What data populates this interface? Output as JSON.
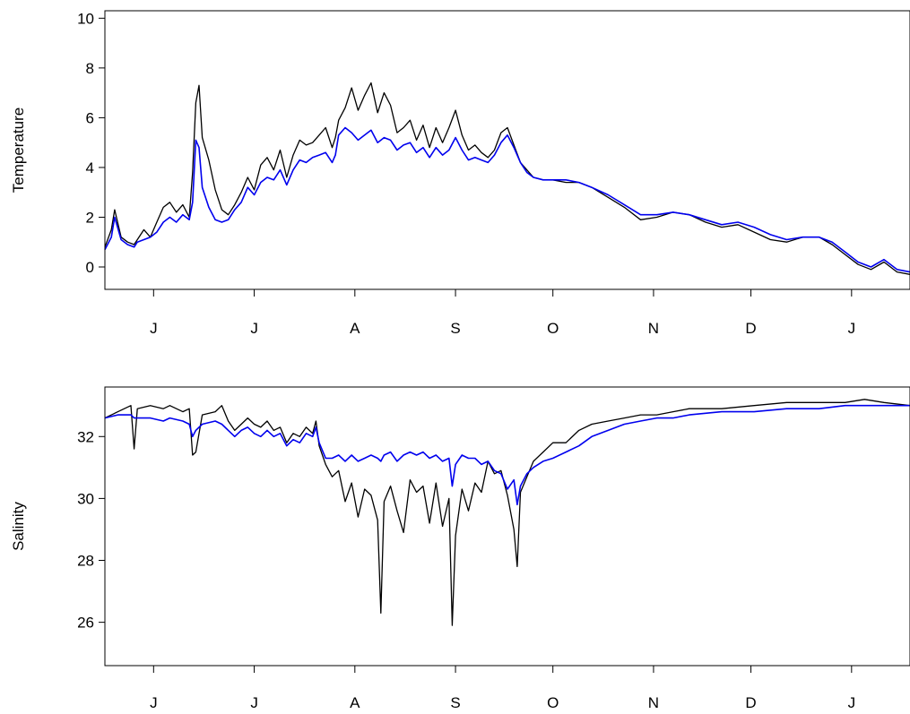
{
  "chart_data": [
    {
      "type": "line",
      "ylabel": "Temperature",
      "xlabel": "",
      "title": "",
      "x_tick_labels": [
        "J",
        "J",
        "A",
        "S",
        "O",
        "N",
        "D",
        "J"
      ],
      "x_tick_days": [
        15,
        46,
        77,
        108,
        138,
        169,
        199,
        230
      ],
      "xlim": [
        0,
        248
      ],
      "ylim": [
        -0.9,
        10.3
      ],
      "y_ticks": [
        0,
        2,
        4,
        6,
        8,
        10
      ],
      "grid": false,
      "series": [
        {
          "color": "#000000",
          "x": [
            0,
            2,
            3,
            5,
            7,
            9,
            10,
            12,
            14,
            16,
            18,
            20,
            22,
            24,
            26,
            27,
            28,
            29,
            30,
            32,
            34,
            36,
            38,
            40,
            42,
            44,
            46,
            48,
            50,
            52,
            54,
            56,
            58,
            60,
            62,
            64,
            66,
            68,
            70,
            71,
            72,
            74,
            76,
            78,
            80,
            82,
            84,
            86,
            88,
            90,
            92,
            94,
            96,
            98,
            100,
            102,
            104,
            106,
            108,
            110,
            112,
            114,
            116,
            118,
            120,
            122,
            124,
            126,
            128,
            130,
            132,
            135,
            138,
            142,
            146,
            150,
            155,
            160,
            165,
            170,
            175,
            180,
            185,
            190,
            195,
            200,
            205,
            210,
            215,
            220,
            224,
            228,
            232,
            236,
            240,
            244,
            248
          ],
          "y": [
            0.8,
            1.5,
            2.3,
            1.2,
            1.0,
            0.9,
            1.1,
            1.5,
            1.2,
            1.8,
            2.4,
            2.6,
            2.2,
            2.5,
            2.0,
            3.8,
            6.6,
            7.3,
            5.2,
            4.3,
            3.1,
            2.3,
            2.1,
            2.5,
            3.0,
            3.6,
            3.1,
            4.1,
            4.4,
            3.9,
            4.7,
            3.6,
            4.5,
            5.1,
            4.9,
            5.0,
            5.3,
            5.6,
            4.8,
            5.2,
            5.9,
            6.4,
            7.2,
            6.3,
            6.9,
            7.4,
            6.2,
            7.0,
            6.5,
            5.4,
            5.6,
            5.9,
            5.1,
            5.7,
            4.8,
            5.6,
            5.0,
            5.6,
            6.3,
            5.3,
            4.7,
            4.9,
            4.6,
            4.4,
            4.7,
            5.4,
            5.6,
            4.9,
            4.2,
            3.9,
            3.6,
            3.5,
            3.5,
            3.4,
            3.4,
            3.2,
            2.8,
            2.4,
            1.9,
            2.0,
            2.2,
            2.1,
            1.8,
            1.6,
            1.7,
            1.4,
            1.1,
            1.0,
            1.2,
            1.2,
            0.9,
            0.5,
            0.1,
            -0.1,
            0.2,
            -0.2,
            -0.3
          ]
        },
        {
          "color": "#0000ee",
          "x": [
            0,
            2,
            3,
            5,
            7,
            9,
            10,
            12,
            14,
            16,
            18,
            20,
            22,
            24,
            26,
            27,
            28,
            29,
            30,
            32,
            34,
            36,
            38,
            40,
            42,
            44,
            46,
            48,
            50,
            52,
            54,
            56,
            58,
            60,
            62,
            64,
            66,
            68,
            70,
            71,
            72,
            74,
            76,
            78,
            80,
            82,
            84,
            86,
            88,
            90,
            92,
            94,
            96,
            98,
            100,
            102,
            104,
            106,
            108,
            110,
            112,
            114,
            116,
            118,
            120,
            122,
            124,
            126,
            128,
            130,
            132,
            135,
            138,
            142,
            146,
            150,
            155,
            160,
            165,
            170,
            175,
            180,
            185,
            190,
            195,
            200,
            205,
            210,
            215,
            220,
            224,
            228,
            232,
            236,
            240,
            244,
            248
          ],
          "y": [
            0.7,
            1.2,
            2.0,
            1.1,
            0.9,
            0.8,
            1.0,
            1.1,
            1.2,
            1.4,
            1.8,
            2.0,
            1.8,
            2.1,
            1.9,
            2.6,
            5.1,
            4.8,
            3.2,
            2.4,
            1.9,
            1.8,
            1.9,
            2.3,
            2.6,
            3.2,
            2.9,
            3.4,
            3.6,
            3.5,
            3.9,
            3.3,
            3.9,
            4.3,
            4.2,
            4.4,
            4.5,
            4.6,
            4.2,
            4.5,
            5.3,
            5.6,
            5.4,
            5.1,
            5.3,
            5.5,
            5.0,
            5.2,
            5.1,
            4.7,
            4.9,
            5.0,
            4.6,
            4.8,
            4.4,
            4.8,
            4.5,
            4.7,
            5.2,
            4.7,
            4.3,
            4.4,
            4.3,
            4.2,
            4.5,
            5.0,
            5.3,
            4.8,
            4.2,
            3.8,
            3.6,
            3.5,
            3.5,
            3.5,
            3.4,
            3.2,
            2.9,
            2.5,
            2.1,
            2.1,
            2.2,
            2.1,
            1.9,
            1.7,
            1.8,
            1.6,
            1.3,
            1.1,
            1.2,
            1.2,
            1.0,
            0.6,
            0.2,
            0.0,
            0.3,
            -0.1,
            -0.2
          ]
        }
      ]
    },
    {
      "type": "line",
      "ylabel": "Salinity",
      "xlabel": "",
      "title": "",
      "x_tick_labels": [
        "J",
        "J",
        "A",
        "S",
        "O",
        "N",
        "D",
        "J"
      ],
      "x_tick_days": [
        15,
        46,
        77,
        108,
        138,
        169,
        199,
        230
      ],
      "xlim": [
        0,
        248
      ],
      "ylim": [
        24.6,
        33.6
      ],
      "y_ticks": [
        26,
        28,
        30,
        32
      ],
      "grid": false,
      "series": [
        {
          "color": "#000000",
          "x": [
            0,
            4,
            8,
            9,
            10,
            14,
            18,
            20,
            24,
            26,
            27,
            28,
            30,
            34,
            36,
            38,
            40,
            42,
            44,
            46,
            48,
            50,
            52,
            54,
            56,
            58,
            60,
            62,
            64,
            65,
            66,
            68,
            70,
            72,
            74,
            76,
            78,
            80,
            82,
            84,
            85,
            86,
            88,
            90,
            92,
            94,
            96,
            98,
            100,
            102,
            104,
            106,
            107,
            108,
            110,
            112,
            114,
            116,
            118,
            120,
            122,
            124,
            126,
            127,
            128,
            130,
            132,
            135,
            138,
            142,
            146,
            150,
            155,
            160,
            165,
            170,
            175,
            180,
            190,
            200,
            210,
            220,
            228,
            234,
            240,
            248
          ],
          "y": [
            32.6,
            32.8,
            33.0,
            31.6,
            32.9,
            33.0,
            32.9,
            33.0,
            32.8,
            32.9,
            31.4,
            31.5,
            32.7,
            32.8,
            33.0,
            32.5,
            32.2,
            32.4,
            32.6,
            32.4,
            32.3,
            32.5,
            32.2,
            32.3,
            31.8,
            32.1,
            32.0,
            32.3,
            32.1,
            32.5,
            31.7,
            31.1,
            30.7,
            30.9,
            29.9,
            30.5,
            29.4,
            30.3,
            30.1,
            29.3,
            26.3,
            29.9,
            30.4,
            29.6,
            28.9,
            30.6,
            30.2,
            30.4,
            29.2,
            30.5,
            29.1,
            30.0,
            25.9,
            28.8,
            30.3,
            29.6,
            30.5,
            30.2,
            31.2,
            30.8,
            30.9,
            30.1,
            29.0,
            27.8,
            30.2,
            30.7,
            31.2,
            31.5,
            31.8,
            31.8,
            32.2,
            32.4,
            32.5,
            32.6,
            32.7,
            32.7,
            32.8,
            32.9,
            32.9,
            33.0,
            33.1,
            33.1,
            33.1,
            33.2,
            33.1,
            33.0
          ]
        },
        {
          "color": "#0000ee",
          "x": [
            0,
            4,
            8,
            9,
            10,
            14,
            18,
            20,
            24,
            26,
            27,
            28,
            30,
            34,
            36,
            38,
            40,
            42,
            44,
            46,
            48,
            50,
            52,
            54,
            56,
            58,
            60,
            62,
            64,
            65,
            66,
            68,
            70,
            72,
            74,
            76,
            78,
            80,
            82,
            84,
            85,
            86,
            88,
            90,
            92,
            94,
            96,
            98,
            100,
            102,
            104,
            106,
            107,
            108,
            110,
            112,
            114,
            116,
            118,
            120,
            122,
            124,
            126,
            127,
            128,
            130,
            132,
            135,
            138,
            142,
            146,
            150,
            155,
            160,
            165,
            170,
            175,
            180,
            190,
            200,
            210,
            220,
            228,
            234,
            240,
            248
          ],
          "y": [
            32.6,
            32.7,
            32.7,
            32.6,
            32.6,
            32.6,
            32.5,
            32.6,
            32.5,
            32.4,
            32.0,
            32.2,
            32.4,
            32.5,
            32.4,
            32.2,
            32.0,
            32.2,
            32.3,
            32.1,
            32.0,
            32.2,
            32.0,
            32.1,
            31.7,
            31.9,
            31.8,
            32.1,
            32.0,
            32.3,
            31.8,
            31.3,
            31.3,
            31.4,
            31.2,
            31.4,
            31.2,
            31.3,
            31.4,
            31.3,
            31.2,
            31.4,
            31.5,
            31.2,
            31.4,
            31.5,
            31.4,
            31.5,
            31.3,
            31.4,
            31.2,
            31.3,
            30.4,
            31.1,
            31.4,
            31.3,
            31.3,
            31.1,
            31.2,
            30.9,
            30.8,
            30.3,
            30.6,
            29.8,
            30.4,
            30.8,
            31.0,
            31.2,
            31.3,
            31.5,
            31.7,
            32.0,
            32.2,
            32.4,
            32.5,
            32.6,
            32.6,
            32.7,
            32.8,
            32.8,
            32.9,
            32.9,
            33.0,
            33.0,
            33.0,
            33.0
          ]
        }
      ]
    }
  ]
}
